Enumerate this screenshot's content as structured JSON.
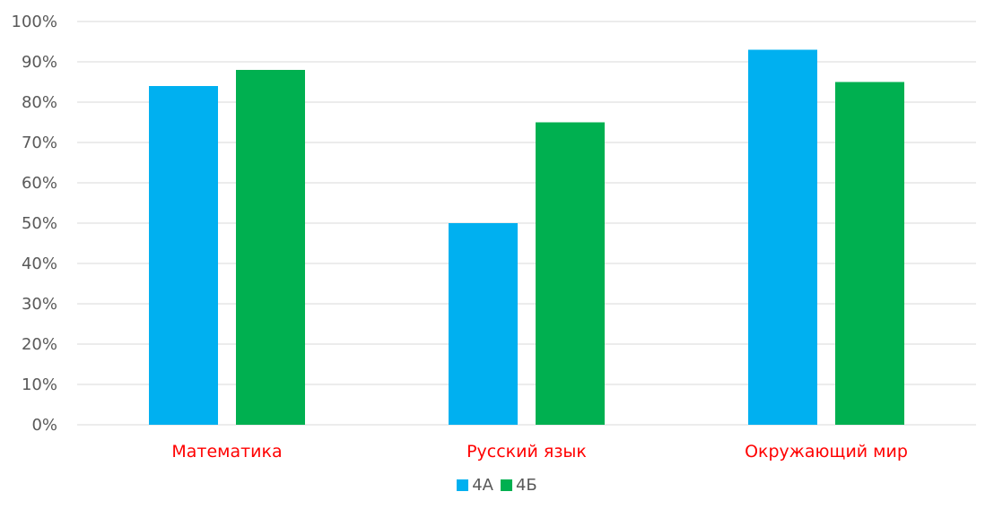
{
  "chart_data": {
    "type": "bar",
    "title": "",
    "xlabel": "",
    "ylabel": "",
    "categories": [
      "Математика",
      "Русский язык",
      "Окружающий мир"
    ],
    "series": [
      {
        "name": "4А",
        "color": "#00b0f0",
        "values": [
          84,
          50,
          93
        ]
      },
      {
        "name": "4Б",
        "color": "#00b050",
        "values": [
          88,
          75,
          85
        ]
      }
    ],
    "ylim": [
      0,
      100
    ],
    "yticks": [
      "0%",
      "10%",
      "20%",
      "30%",
      "40%",
      "50%",
      "60%",
      "70%",
      "80%",
      "90%",
      "100%"
    ],
    "category_label_color": "#ff0000",
    "grid": true,
    "legend_position": "bottom"
  }
}
